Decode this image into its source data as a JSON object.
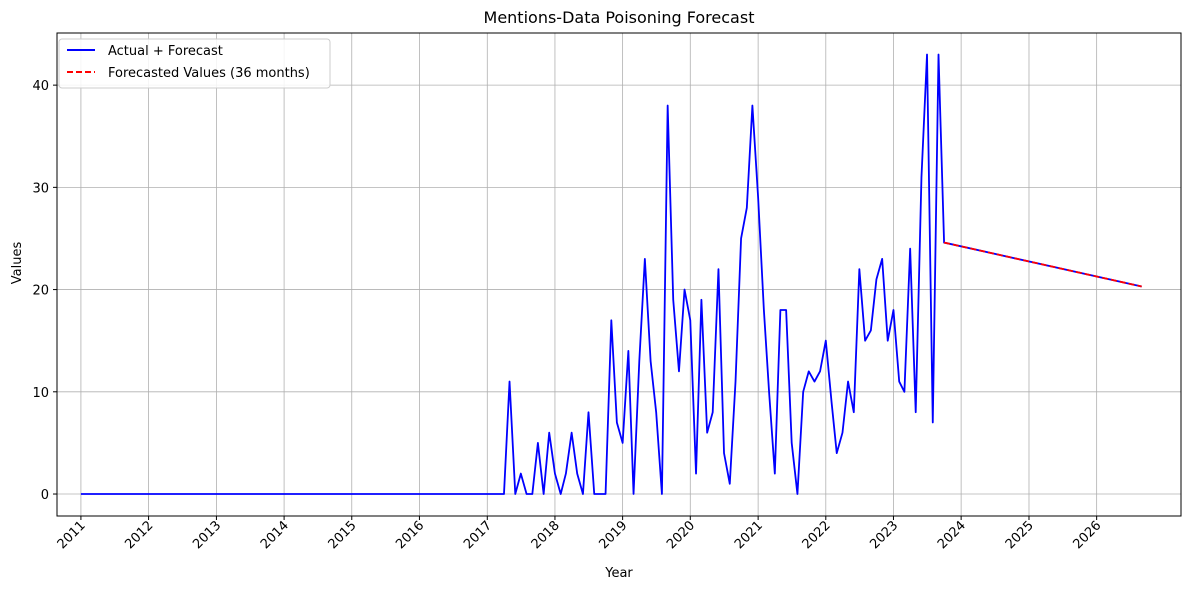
{
  "chart_data": {
    "type": "line",
    "title": "Mentions-Data Poisoning Forecast",
    "xlabel": "Year",
    "ylabel": "Values",
    "xlim": [
      "2010-08-25",
      "2027-04-01"
    ],
    "ylim": [
      -2.15,
      45.1
    ],
    "xticks": [
      "2011",
      "2012",
      "2013",
      "2014",
      "2015",
      "2016",
      "2017",
      "2018",
      "2019",
      "2020",
      "2021",
      "2022",
      "2023",
      "2024",
      "2025",
      "2026"
    ],
    "yticks": [
      0,
      10,
      20,
      30,
      40
    ],
    "grid": true,
    "legend": "top-left",
    "series": [
      {
        "name": "Actual + Forecast",
        "color": "#0000ff",
        "style": "solid",
        "points": [
          [
            "2011-01-01",
            0
          ],
          [
            "2017-04-01",
            0
          ],
          [
            "2017-05-01",
            11
          ],
          [
            "2017-06-01",
            0
          ],
          [
            "2017-07-01",
            2
          ],
          [
            "2017-08-01",
            0
          ],
          [
            "2017-09-01",
            0
          ],
          [
            "2017-10-01",
            5
          ],
          [
            "2017-11-01",
            0
          ],
          [
            "2017-12-01",
            6
          ],
          [
            "2018-01-01",
            2
          ],
          [
            "2018-02-01",
            0
          ],
          [
            "2018-03-01",
            2
          ],
          [
            "2018-04-01",
            6
          ],
          [
            "2018-05-01",
            2
          ],
          [
            "2018-06-01",
            0
          ],
          [
            "2018-07-01",
            8
          ],
          [
            "2018-08-01",
            0
          ],
          [
            "2018-09-01",
            0
          ],
          [
            "2018-10-01",
            0
          ],
          [
            "2018-11-01",
            17
          ],
          [
            "2018-12-01",
            7
          ],
          [
            "2019-01-01",
            5
          ],
          [
            "2019-02-01",
            14
          ],
          [
            "2019-03-01",
            0
          ],
          [
            "2019-04-01",
            13
          ],
          [
            "2019-05-01",
            23
          ],
          [
            "2019-06-01",
            13
          ],
          [
            "2019-07-01",
            8
          ],
          [
            "2019-08-01",
            0
          ],
          [
            "2019-09-01",
            38
          ],
          [
            "2019-10-01",
            19
          ],
          [
            "2019-11-01",
            12
          ],
          [
            "2019-12-01",
            20
          ],
          [
            "2020-01-01",
            17
          ],
          [
            "2020-02-01",
            2
          ],
          [
            "2020-03-01",
            19
          ],
          [
            "2020-04-01",
            6
          ],
          [
            "2020-05-01",
            8
          ],
          [
            "2020-06-01",
            22
          ],
          [
            "2020-07-01",
            4
          ],
          [
            "2020-08-01",
            1
          ],
          [
            "2020-09-01",
            11
          ],
          [
            "2020-10-01",
            25
          ],
          [
            "2020-11-01",
            28
          ],
          [
            "2020-12-01",
            38
          ],
          [
            "2021-01-01",
            29
          ],
          [
            "2021-02-01",
            18
          ],
          [
            "2021-03-01",
            10
          ],
          [
            "2021-04-01",
            2
          ],
          [
            "2021-05-01",
            18
          ],
          [
            "2021-06-01",
            18
          ],
          [
            "2021-07-01",
            5
          ],
          [
            "2021-08-01",
            0
          ],
          [
            "2021-09-01",
            10
          ],
          [
            "2021-10-01",
            12
          ],
          [
            "2021-11-01",
            11
          ],
          [
            "2021-12-01",
            12
          ],
          [
            "2022-01-01",
            15
          ],
          [
            "2022-02-01",
            9
          ],
          [
            "2022-03-01",
            4
          ],
          [
            "2022-04-01",
            6
          ],
          [
            "2022-05-01",
            11
          ],
          [
            "2022-06-01",
            8
          ],
          [
            "2022-07-01",
            22
          ],
          [
            "2022-08-01",
            15
          ],
          [
            "2022-09-01",
            16
          ],
          [
            "2022-10-01",
            21
          ],
          [
            "2022-11-01",
            23
          ],
          [
            "2022-12-01",
            15
          ],
          [
            "2023-01-01",
            18
          ],
          [
            "2023-02-01",
            11
          ],
          [
            "2023-03-01",
            10
          ],
          [
            "2023-04-01",
            24
          ],
          [
            "2023-05-01",
            8
          ],
          [
            "2023-06-01",
            31
          ],
          [
            "2023-07-01",
            43
          ],
          [
            "2023-08-01",
            7
          ],
          [
            "2023-09-01",
            43
          ],
          [
            "2023-10-01",
            24.6
          ],
          [
            "2026-09-01",
            20.3
          ]
        ]
      },
      {
        "name": "Forecasted Values (36 months)",
        "color": "#ff0000",
        "style": "dashed",
        "points": [
          [
            "2023-10-01",
            24.6
          ],
          [
            "2026-09-01",
            20.3
          ]
        ]
      }
    ]
  }
}
